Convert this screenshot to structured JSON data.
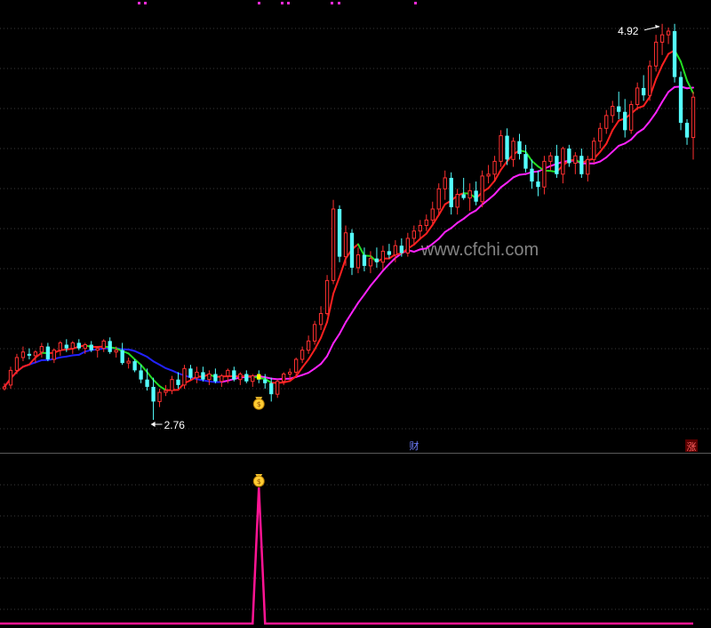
{
  "chart_data": {
    "type": "candlestick",
    "watermark": "www.cfchi.com",
    "y_range": [
      2.6,
      5.05
    ],
    "annotations": {
      "high_label": "4.92",
      "high_value": 4.92,
      "low_label": "2.76",
      "low_value": 2.76,
      "marker_cai": "财",
      "marker_zhang": "涨"
    },
    "candles": [
      [
        2.93,
        2.96,
        2.92,
        2.94
      ],
      [
        2.95,
        3.05,
        2.93,
        3.03
      ],
      [
        3.03,
        3.12,
        3.01,
        3.1
      ],
      [
        3.1,
        3.16,
        3.08,
        3.13
      ],
      [
        3.12,
        3.15,
        3.09,
        3.11
      ],
      [
        3.11,
        3.14,
        3.07,
        3.13
      ],
      [
        3.13,
        3.18,
        3.1,
        3.16
      ],
      [
        3.16,
        3.18,
        3.08,
        3.09
      ],
      [
        3.09,
        3.15,
        3.07,
        3.14
      ],
      [
        3.14,
        3.19,
        3.11,
        3.18
      ],
      [
        3.17,
        3.2,
        3.13,
        3.15
      ],
      [
        3.15,
        3.19,
        3.12,
        3.18
      ],
      [
        3.18,
        3.2,
        3.14,
        3.15
      ],
      [
        3.15,
        3.18,
        3.12,
        3.17
      ],
      [
        3.17,
        3.19,
        3.13,
        3.14
      ],
      [
        3.14,
        3.16,
        3.1,
        3.15
      ],
      [
        3.15,
        3.2,
        3.13,
        3.19
      ],
      [
        3.19,
        3.21,
        3.12,
        3.13
      ],
      [
        3.13,
        3.16,
        3.1,
        3.14
      ],
      [
        3.14,
        3.18,
        3.06,
        3.07
      ],
      [
        3.07,
        3.1,
        3.04,
        3.08
      ],
      [
        3.08,
        3.09,
        3.02,
        3.03
      ],
      [
        3.03,
        3.06,
        2.96,
        2.98
      ],
      [
        2.98,
        3.04,
        2.92,
        2.94
      ],
      [
        2.94,
        2.99,
        2.76,
        2.86
      ],
      [
        2.86,
        2.93,
        2.83,
        2.91
      ],
      [
        2.91,
        2.95,
        2.89,
        2.92
      ],
      [
        2.92,
        3.0,
        2.9,
        2.98
      ],
      [
        2.98,
        3.02,
        2.93,
        2.95
      ],
      [
        2.95,
        3.06,
        2.93,
        3.04
      ],
      [
        3.04,
        3.06,
        2.98,
        2.99
      ],
      [
        2.99,
        3.05,
        2.96,
        3.02
      ],
      [
        3.02,
        3.05,
        2.97,
        2.98
      ],
      [
        2.98,
        3.03,
        2.95,
        3.01
      ],
      [
        3.01,
        3.04,
        2.96,
        2.97
      ],
      [
        2.97,
        3.01,
        2.94,
        3.0
      ],
      [
        3.0,
        3.04,
        2.96,
        3.03
      ],
      [
        3.03,
        3.05,
        2.97,
        2.98
      ],
      [
        2.98,
        3.02,
        2.95,
        3.01
      ],
      [
        3.01,
        3.03,
        2.96,
        2.97
      ],
      [
        2.97,
        3.01,
        2.94,
        3.0
      ],
      [
        3.0,
        3.03,
        2.96,
        2.98
      ],
      [
        2.98,
        3.01,
        2.93,
        2.96
      ],
      [
        2.96,
        2.99,
        2.86,
        2.9
      ],
      [
        2.9,
        2.98,
        2.88,
        2.97
      ],
      [
        2.97,
        3.02,
        2.95,
        3.01
      ],
      [
        3.01,
        3.04,
        2.98,
        3.02
      ],
      [
        3.02,
        3.1,
        3.0,
        3.09
      ],
      [
        3.09,
        3.16,
        3.07,
        3.14
      ],
      [
        3.14,
        3.22,
        3.12,
        3.19
      ],
      [
        3.19,
        3.3,
        3.17,
        3.28
      ],
      [
        3.28,
        3.38,
        3.25,
        3.34
      ],
      [
        3.34,
        3.55,
        3.33,
        3.52
      ],
      [
        3.52,
        3.96,
        3.5,
        3.91
      ],
      [
        3.91,
        3.93,
        3.62,
        3.65
      ],
      [
        3.65,
        3.82,
        3.6,
        3.78
      ],
      [
        3.78,
        3.8,
        3.55,
        3.59
      ],
      [
        3.59,
        3.7,
        3.56,
        3.66
      ],
      [
        3.66,
        3.7,
        3.57,
        3.6
      ],
      [
        3.6,
        3.68,
        3.56,
        3.64
      ],
      [
        3.64,
        3.7,
        3.59,
        3.62
      ],
      [
        3.62,
        3.71,
        3.58,
        3.68
      ],
      [
        3.68,
        3.72,
        3.64,
        3.66
      ],
      [
        3.66,
        3.74,
        3.62,
        3.71
      ],
      [
        3.71,
        3.75,
        3.65,
        3.67
      ],
      [
        3.67,
        3.78,
        3.65,
        3.75
      ],
      [
        3.75,
        3.82,
        3.72,
        3.79
      ],
      [
        3.79,
        3.85,
        3.75,
        3.82
      ],
      [
        3.82,
        3.88,
        3.79,
        3.85
      ],
      [
        3.85,
        3.95,
        3.83,
        3.91
      ],
      [
        3.91,
        4.05,
        3.88,
        4.02
      ],
      [
        4.02,
        4.12,
        3.96,
        4.08
      ],
      [
        4.08,
        4.11,
        3.88,
        3.92
      ],
      [
        3.92,
        4.02,
        3.88,
        3.99
      ],
      [
        3.99,
        4.08,
        3.96,
        3.97
      ],
      [
        3.97,
        4.05,
        3.9,
        4.01
      ],
      [
        4.01,
        4.06,
        3.93,
        3.95
      ],
      [
        3.95,
        4.12,
        3.92,
        4.09
      ],
      [
        4.09,
        4.15,
        4.05,
        4.1
      ],
      [
        4.1,
        4.2,
        4.06,
        4.17
      ],
      [
        4.17,
        4.34,
        4.14,
        4.31
      ],
      [
        4.31,
        4.35,
        4.15,
        4.18
      ],
      [
        4.18,
        4.3,
        4.14,
        4.28
      ],
      [
        4.28,
        4.32,
        4.18,
        4.21
      ],
      [
        4.21,
        4.26,
        4.11,
        4.13
      ],
      [
        4.13,
        4.18,
        4.02,
        4.06
      ],
      [
        4.06,
        4.12,
        3.98,
        4.03
      ],
      [
        4.03,
        4.2,
        3.99,
        4.17
      ],
      [
        4.17,
        4.22,
        4.12,
        4.2
      ],
      [
        4.2,
        4.26,
        4.08,
        4.1
      ],
      [
        4.1,
        4.25,
        4.05,
        4.24
      ],
      [
        4.24,
        4.26,
        4.14,
        4.16
      ],
      [
        4.16,
        4.22,
        4.1,
        4.2
      ],
      [
        4.2,
        4.24,
        4.08,
        4.1
      ],
      [
        4.1,
        4.2,
        4.06,
        4.18
      ],
      [
        4.18,
        4.3,
        4.16,
        4.28
      ],
      [
        4.28,
        4.38,
        4.24,
        4.35
      ],
      [
        4.35,
        4.45,
        4.32,
        4.42
      ],
      [
        4.42,
        4.5,
        4.38,
        4.47
      ],
      [
        4.47,
        4.55,
        4.4,
        4.44
      ],
      [
        4.44,
        4.51,
        4.3,
        4.34
      ],
      [
        4.34,
        4.5,
        4.32,
        4.48
      ],
      [
        4.48,
        4.6,
        4.45,
        4.57
      ],
      [
        4.57,
        4.64,
        4.5,
        4.53
      ],
      [
        4.53,
        4.72,
        4.5,
        4.69
      ],
      [
        4.69,
        4.86,
        4.66,
        4.82
      ],
      [
        4.82,
        4.92,
        4.75,
        4.86
      ],
      [
        4.86,
        4.9,
        4.81,
        4.88
      ],
      [
        4.88,
        4.92,
        4.6,
        4.63
      ],
      [
        4.63,
        4.66,
        4.34,
        4.38
      ],
      [
        4.38,
        4.4,
        4.26,
        4.3
      ],
      [
        4.3,
        4.55,
        4.18,
        4.52
      ]
    ],
    "indicator": {
      "signal_index": 41,
      "baseline": 0
    }
  }
}
